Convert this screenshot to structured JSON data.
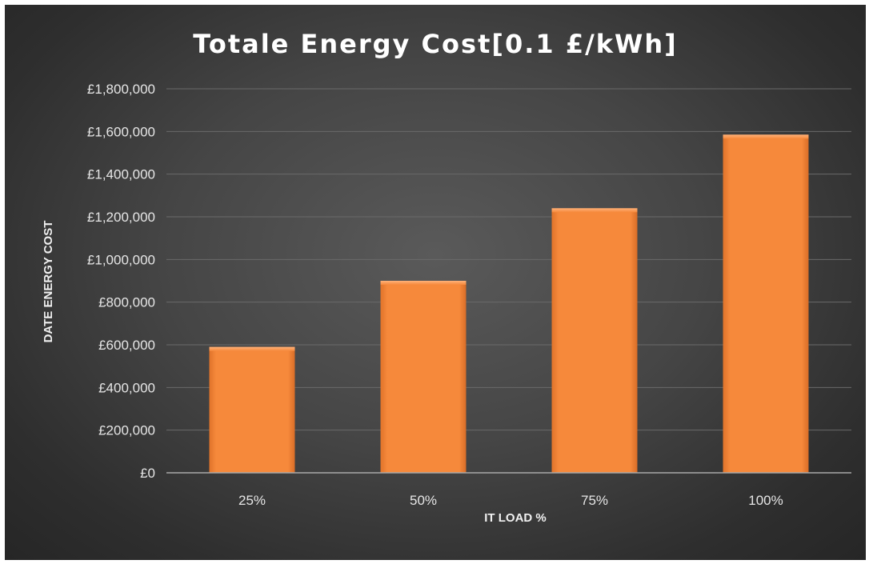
{
  "chart_data": {
    "type": "bar",
    "title": "Totale Energy Cost[0.1 £/kWh]",
    "xlabel": "IT LOAD %",
    "ylabel": "DATE ENERGY COST",
    "categories": [
      "25%",
      "50%",
      "75%",
      "100%"
    ],
    "values": [
      590000,
      900000,
      1240000,
      1585000
    ],
    "ylim": [
      0,
      1800000
    ],
    "yticks": [
      0,
      200000,
      400000,
      600000,
      800000,
      1000000,
      1200000,
      1400000,
      1600000,
      1800000
    ],
    "ytick_labels": [
      "£0",
      "£200,000",
      "£400,000",
      "£600,000",
      "£800,000",
      "£1,000,000",
      "£1,200,000",
      "£1,400,000",
      "£1,600,000",
      "£1,800,000"
    ],
    "grid": true,
    "legend": "none",
    "bar_color": "#f5883a",
    "background_color": "#3d3d3d"
  }
}
